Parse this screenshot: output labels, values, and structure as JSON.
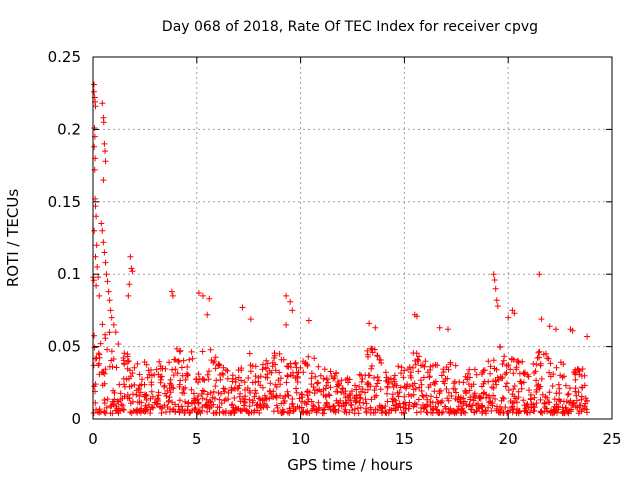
{
  "chart_data": {
    "type": "scatter",
    "title": "Day 068 of 2018, Rate Of TEC Index for receiver cpvg",
    "xlabel": "GPS time / hours",
    "ylabel": "ROTI / TECUs",
    "xlim": [
      0,
      25
    ],
    "ylim": [
      0,
      0.25
    ],
    "xticks": [
      0,
      5,
      10,
      15,
      20,
      25
    ],
    "yticks": [
      0,
      0.05,
      0.1,
      0.15,
      0.2,
      0.25
    ],
    "xtick_labels": [
      "0",
      "5",
      "10",
      "15",
      "20",
      "25"
    ],
    "ytick_labels": [
      "0",
      "0.05",
      "0.1",
      "0.15",
      "0.2",
      "0.25"
    ],
    "grid": true,
    "marker": "+",
    "colors": {
      "series": "#ff0000",
      "grid": "#a0a0a0",
      "axes": "#000000"
    },
    "series": [
      {
        "name": "ROTI",
        "points": [
          [
            0.05,
            0.231
          ],
          [
            0.05,
            0.226
          ],
          [
            0.08,
            0.222
          ],
          [
            0.1,
            0.219
          ],
          [
            0.12,
            0.216
          ],
          [
            0.07,
            0.201
          ],
          [
            0.09,
            0.195
          ],
          [
            0.06,
            0.188
          ],
          [
            0.1,
            0.18
          ],
          [
            0.08,
            0.172
          ],
          [
            0.1,
            0.152
          ],
          [
            0.12,
            0.147
          ],
          [
            0.15,
            0.14
          ],
          [
            0.06,
            0.13
          ],
          [
            0.18,
            0.12
          ],
          [
            0.12,
            0.112
          ],
          [
            0.2,
            0.105
          ],
          [
            0.25,
            0.098
          ],
          [
            0.15,
            0.092
          ],
          [
            0.3,
            0.085
          ],
          [
            0.45,
            0.218
          ],
          [
            0.5,
            0.208
          ],
          [
            0.52,
            0.205
          ],
          [
            0.55,
            0.19
          ],
          [
            0.58,
            0.185
          ],
          [
            0.6,
            0.178
          ],
          [
            0.5,
            0.165
          ],
          [
            0.4,
            0.135
          ],
          [
            0.45,
            0.13
          ],
          [
            0.5,
            0.122
          ],
          [
            0.55,
            0.115
          ],
          [
            0.6,
            0.108
          ],
          [
            0.65,
            0.1
          ],
          [
            0.7,
            0.095
          ],
          [
            0.75,
            0.088
          ],
          [
            0.8,
            0.082
          ],
          [
            0.85,
            0.075
          ],
          [
            0.9,
            0.07
          ],
          [
            1.0,
            0.065
          ],
          [
            1.1,
            0.06
          ],
          [
            1.8,
            0.112
          ],
          [
            1.85,
            0.104
          ],
          [
            1.9,
            0.102
          ],
          [
            1.75,
            0.093
          ],
          [
            1.7,
            0.085
          ],
          [
            3.8,
            0.088
          ],
          [
            3.85,
            0.085
          ],
          [
            5.1,
            0.087
          ],
          [
            5.3,
            0.085
          ],
          [
            5.6,
            0.083
          ],
          [
            5.5,
            0.072
          ],
          [
            7.2,
            0.077
          ],
          [
            7.6,
            0.069
          ],
          [
            9.3,
            0.085
          ],
          [
            9.5,
            0.081
          ],
          [
            9.6,
            0.075
          ],
          [
            9.3,
            0.065
          ],
          [
            10.4,
            0.068
          ],
          [
            13.3,
            0.066
          ],
          [
            13.6,
            0.063
          ],
          [
            15.5,
            0.072
          ],
          [
            15.6,
            0.071
          ],
          [
            16.7,
            0.063
          ],
          [
            17.1,
            0.062
          ],
          [
            19.3,
            0.1
          ],
          [
            19.35,
            0.096
          ],
          [
            19.4,
            0.09
          ],
          [
            19.45,
            0.082
          ],
          [
            19.5,
            0.078
          ],
          [
            20.0,
            0.07
          ],
          [
            20.2,
            0.075
          ],
          [
            20.3,
            0.073
          ],
          [
            21.5,
            0.1
          ],
          [
            21.6,
            0.069
          ],
          [
            22.0,
            0.064
          ],
          [
            22.3,
            0.062
          ],
          [
            23.0,
            0.062
          ],
          [
            23.1,
            0.061
          ],
          [
            23.8,
            0.057
          ]
        ]
      }
    ],
    "envelope": {
      "description": "upper envelope of dense low-level scatter (hours, ROTI)",
      "x": [
        0,
        0.5,
        1,
        1.5,
        2,
        2.5,
        3,
        3.5,
        4,
        4.5,
        5,
        5.5,
        6,
        6.5,
        7,
        7.5,
        8,
        8.5,
        9,
        9.5,
        10,
        10.5,
        11,
        11.5,
        12,
        12.5,
        13,
        13.5,
        14,
        14.5,
        15,
        15.5,
        16,
        16.5,
        17,
        17.5,
        18,
        18.5,
        19,
        19.5,
        20,
        20.5,
        21,
        21.5,
        22,
        22.5,
        23,
        23.5,
        23.8
      ],
      "y": [
        0.1,
        0.075,
        0.06,
        0.052,
        0.045,
        0.04,
        0.04,
        0.042,
        0.05,
        0.045,
        0.05,
        0.055,
        0.045,
        0.035,
        0.035,
        0.045,
        0.05,
        0.045,
        0.048,
        0.04,
        0.04,
        0.045,
        0.04,
        0.035,
        0.03,
        0.03,
        0.045,
        0.05,
        0.042,
        0.035,
        0.04,
        0.048,
        0.04,
        0.038,
        0.04,
        0.038,
        0.035,
        0.035,
        0.04,
        0.052,
        0.045,
        0.04,
        0.042,
        0.048,
        0.045,
        0.04,
        0.035,
        0.035,
        0.035
      ]
    },
    "density": {
      "description": "approximate count of points per 0.25-hour bin in dense cloud",
      "per_bin": 14,
      "bin_width": 0.25,
      "x_end": 23.8,
      "gap_start": 12.5,
      "gap_end": 12.6
    }
  }
}
